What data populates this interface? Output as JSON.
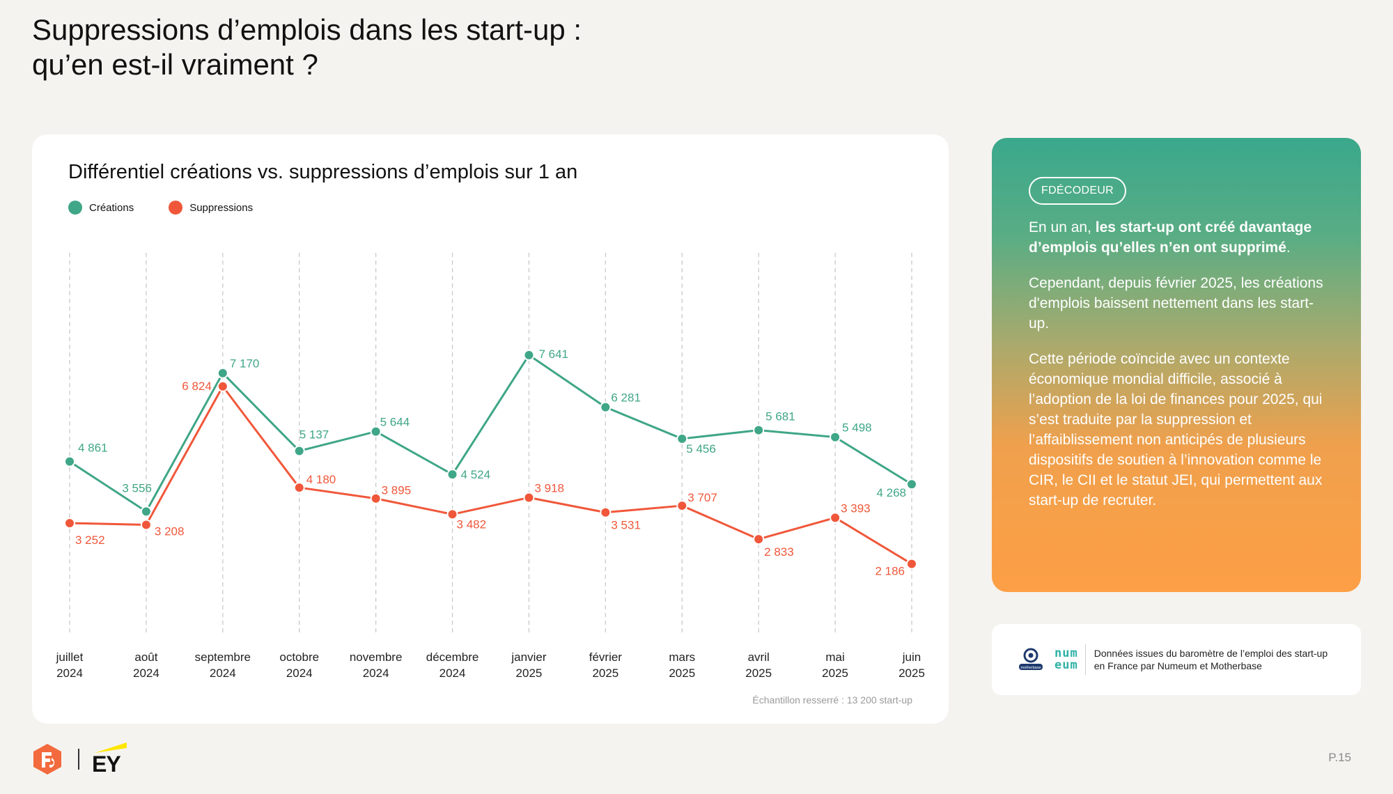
{
  "page": {
    "title_line1": "Suppressions d’emplois dans les start-up :",
    "title_line2": "qu’en est-il vraiment ?",
    "page_number": "P.15"
  },
  "colors": {
    "creations": "#3fa687",
    "suppressions": "#f0573a",
    "grid": "#c9c9c9"
  },
  "chart_data": {
    "type": "line",
    "title": "Différentiel créations vs. suppressions d’emplois sur 1 an",
    "categories": [
      [
        "juillet",
        "2024"
      ],
      [
        "août",
        "2024"
      ],
      [
        "septembre",
        "2024"
      ],
      [
        "octobre",
        "2024"
      ],
      [
        "novembre",
        "2024"
      ],
      [
        "décembre",
        "2024"
      ],
      [
        "janvier",
        "2025"
      ],
      [
        "février",
        "2025"
      ],
      [
        "mars",
        "2025"
      ],
      [
        "avril",
        "2025"
      ],
      [
        "mai",
        "2025"
      ],
      [
        "juin",
        "2025"
      ]
    ],
    "series": [
      {
        "name": "Créations",
        "values": [
          4861,
          3556,
          7170,
          5137,
          5644,
          4524,
          7641,
          6281,
          5456,
          5681,
          5498,
          4268
        ],
        "labels": [
          "4 861",
          "3 556",
          "7 170",
          "5 137",
          "5 644",
          "4 524",
          "7 641",
          "6 281",
          "5 456",
          "5 681",
          "5 498",
          "4 268"
        ]
      },
      {
        "name": "Suppressions",
        "values": [
          3252,
          3208,
          6824,
          4180,
          3895,
          3482,
          3918,
          3531,
          3707,
          2833,
          3393,
          2186
        ],
        "labels": [
          "3 252",
          "3 208",
          "6 824",
          "4 180",
          "3 895",
          "3 482",
          "3 918",
          "3 531",
          "3 707",
          "2 833",
          "3 393",
          "2 186"
        ]
      }
    ],
    "note": "Échantillon resserré : 13 200 start-up",
    "grid": "vertical dashed",
    "legend": "top-left"
  },
  "decoder": {
    "badge": "FDÉCODEUR",
    "p1_lead": "En un an, ",
    "p1_bold": "les start-up ont créé davantage d’emplois qu’elles n’en ont supprimé",
    "p1_end": ".",
    "p2": "Cependant, depuis février 2025, les créations d'emplois baissent nettement dans les start-up.",
    "p3": "Cette période coïncide avec un contexte économique mondial difficile, associé à l’adoption de la loi de finances pour 2025, qui s’est traduite par la suppression et l’affaiblissement non anticipés de plusieurs dispositifs de soutien à l’innovation comme le CIR, le CII et le statut JEI, qui permettent aux start-up de recruter."
  },
  "source": {
    "text": "Données issues du baromètre de l’emploi des start-up en France par Numeum et Motherbase",
    "numeum_line1": "num",
    "numeum_line2": "eum",
    "motherbase_label": "motherbase"
  },
  "footer": {
    "ey_label": "EY"
  }
}
